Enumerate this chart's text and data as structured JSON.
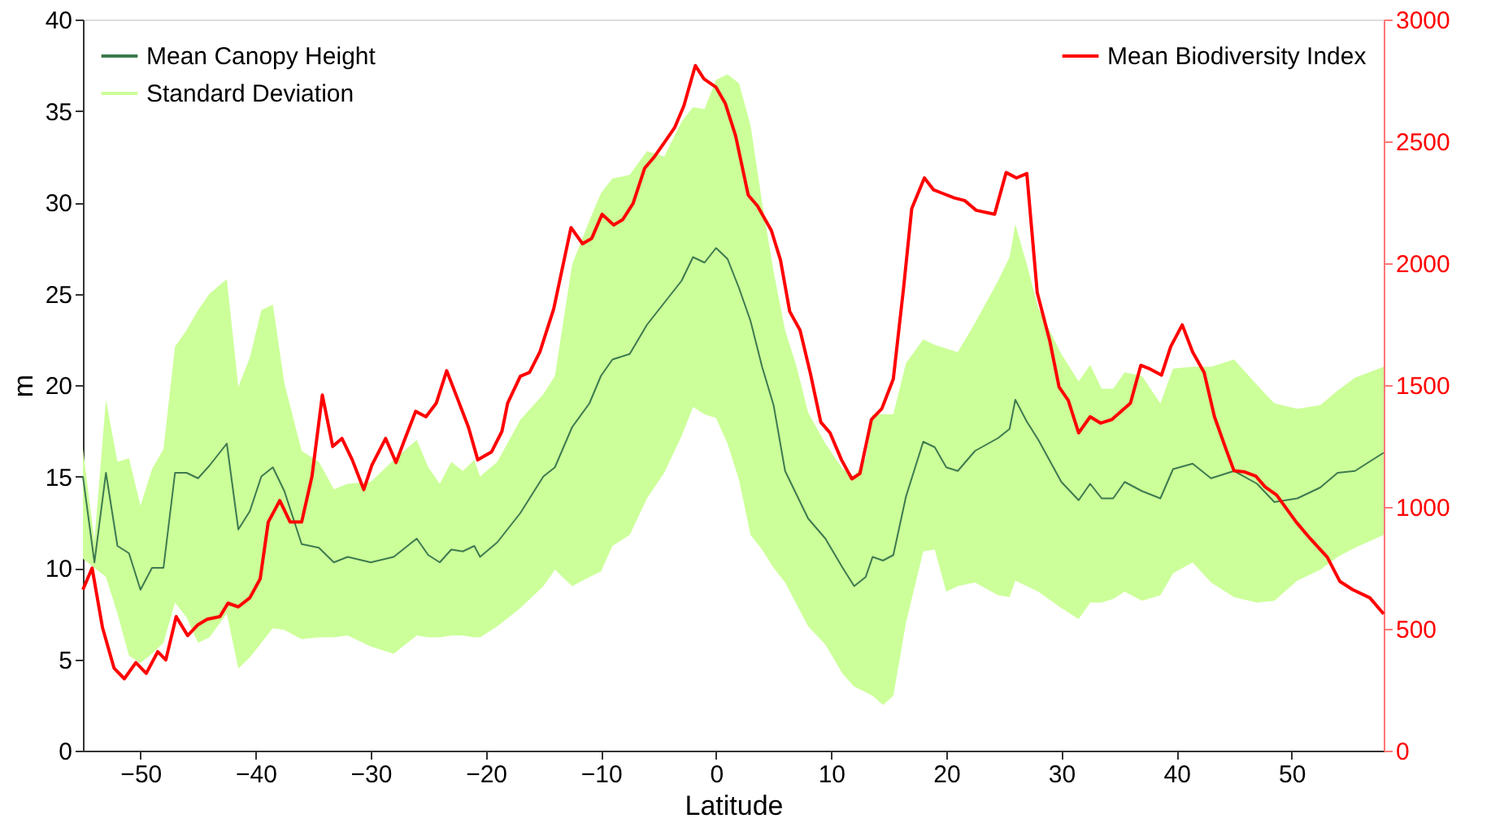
{
  "chart_data": {
    "type": "line",
    "xlabel": "Latitude",
    "ylabel": "m",
    "xlim": [
      -55,
      58
    ],
    "xticks": [
      -50,
      -40,
      -30,
      -20,
      -10,
      0,
      10,
      20,
      30,
      40,
      50
    ],
    "ylim": [
      0,
      40
    ],
    "yticks": [
      0,
      5,
      10,
      15,
      20,
      25,
      30,
      35,
      40
    ],
    "y2lim": [
      0,
      3000
    ],
    "y2ticks": [
      0,
      500,
      1000,
      1500,
      2000,
      2500,
      3000
    ],
    "grid": false,
    "legend": "top left",
    "marker": "none",
    "line_style": "solid",
    "series": [
      {
        "name": "Standard Deviation",
        "type": "area",
        "color": "#ccff99"
      },
      {
        "name": "Mean Canopy Height",
        "color": "#3d7a50",
        "x": [
          -55,
          -54,
          -53,
          -52,
          -51,
          -50,
          -49,
          -48,
          -47,
          -46,
          -45,
          -44,
          -42.5,
          -41.5,
          -40.5,
          -39.5,
          -38.5,
          -37.5,
          -36,
          -34.5,
          -33.2,
          -32,
          -30,
          -28,
          -26,
          -25,
          -24,
          -23,
          -22,
          -21,
          -20.5,
          -19,
          -17,
          -15,
          -14,
          -12.5,
          -11,
          -10,
          -9,
          -7.5,
          -6,
          -4.5,
          -3,
          -2,
          -1,
          0,
          1,
          2,
          3,
          4,
          5,
          6,
          7,
          8,
          9.5,
          11,
          12,
          13,
          13.6,
          14.5,
          15.4,
          16.5,
          18,
          19,
          20,
          21,
          22.5,
          24.5,
          25.5,
          26,
          27,
          28,
          30,
          31.5,
          32.5,
          33.5,
          34.5,
          35.5,
          37,
          38.6,
          39.7,
          41.4,
          43,
          45,
          47,
          48.5,
          50.5,
          52.5,
          54,
          55.5,
          58
        ],
        "lower": [
          10.5,
          10.0,
          9.5,
          7.5,
          5.2,
          4.8,
          5.3,
          5.9,
          8.1,
          7.3,
          5.9,
          6.2,
          7.5,
          4.5,
          5.1,
          5.9,
          6.7,
          6.6,
          6.1,
          6.2,
          6.2,
          6.3,
          5.7,
          5.3,
          6.3,
          6.2,
          6.2,
          6.3,
          6.3,
          6.2,
          6.2,
          6.8,
          7.8,
          9.0,
          9.9,
          9.0,
          9.5,
          9.8,
          11.2,
          11.8,
          13.8,
          15.2,
          17.2,
          18.8,
          18.4,
          18.2,
          16.8,
          14.8,
          11.8,
          11.0,
          10.0,
          9.2,
          8.0,
          6.8,
          5.8,
          4.2,
          3.5,
          3.2,
          3.0,
          2.5,
          3.0,
          7.0,
          10.9,
          11.0,
          8.7,
          9.0,
          9.2,
          8.5,
          8.4,
          9.3,
          9.0,
          8.7,
          7.8,
          7.2,
          8.1,
          8.1,
          8.3,
          8.7,
          8.2,
          8.5,
          9.7,
          10.3,
          9.2,
          8.4,
          8.1,
          8.2,
          9.3,
          9.9,
          10.6,
          11.1,
          11.8
        ],
        "upper": [
          16.5,
          11.5,
          19.2,
          15.8,
          16.0,
          13.4,
          15.4,
          16.5,
          22.1,
          23.0,
          24.1,
          25.0,
          25.8,
          19.9,
          21.5,
          24.1,
          24.4,
          20.1,
          16.4,
          15.8,
          14.3,
          14.6,
          14.7,
          15.9,
          17.0,
          15.5,
          14.6,
          15.8,
          15.3,
          15.9,
          15.0,
          15.8,
          18.1,
          19.5,
          20.5,
          26.6,
          29.0,
          30.5,
          31.3,
          31.5,
          32.8,
          32.5,
          34.4,
          35.2,
          35.1,
          36.7,
          37.0,
          36.5,
          34.2,
          30.0,
          26.2,
          23.0,
          21.0,
          18.5,
          16.8,
          15.4,
          15.0,
          16.0,
          18.4,
          18.4,
          18.4,
          21.2,
          22.5,
          22.2,
          22.0,
          21.8,
          23.4,
          25.7,
          27.0,
          28.8,
          26.6,
          24.2,
          21.7,
          20.2,
          21.1,
          19.8,
          19.8,
          20.7,
          20.5,
          19.0,
          20.9,
          21.0,
          21.0,
          21.4,
          20.0,
          19.0,
          18.7,
          18.9,
          19.7,
          20.4,
          21.0
        ],
        "values": [
          15.0,
          10.3,
          15.2,
          11.2,
          10.8,
          8.8,
          10.0,
          10.0,
          15.2,
          15.2,
          14.9,
          15.6,
          16.8,
          12.1,
          13.1,
          15.0,
          15.5,
          14.2,
          11.3,
          11.1,
          10.3,
          10.6,
          10.3,
          10.6,
          11.6,
          10.7,
          10.3,
          11.0,
          10.9,
          11.2,
          10.6,
          11.4,
          13.0,
          15.0,
          15.5,
          17.7,
          19.0,
          20.5,
          21.4,
          21.7,
          23.3,
          24.5,
          25.7,
          27.0,
          26.7,
          27.5,
          26.9,
          25.3,
          23.5,
          21.0,
          18.9,
          15.3,
          14.0,
          12.7,
          11.6,
          10.0,
          9.0,
          9.5,
          10.6,
          10.4,
          10.7,
          13.9,
          16.9,
          16.6,
          15.5,
          15.3,
          16.4,
          17.1,
          17.6,
          19.2,
          18.0,
          17.0,
          14.7,
          13.7,
          14.6,
          13.8,
          13.8,
          14.7,
          14.2,
          13.8,
          15.4,
          15.7,
          14.9,
          15.3,
          14.6,
          13.6,
          13.8,
          14.4,
          15.2,
          15.3,
          16.3
        ]
      },
      {
        "name": "Mean Biodiversity Index",
        "axis": "y2",
        "color": "#ff0000",
        "x": [
          -55,
          -54.2,
          -53.3,
          -52.3,
          -51.4,
          -50.4,
          -49.5,
          -48.5,
          -47.8,
          -46.9,
          -45.9,
          -45,
          -44.2,
          -43.1,
          -42.4,
          -41.5,
          -40.5,
          -39.6,
          -38.9,
          -37.9,
          -37,
          -36,
          -35.1,
          -34.2,
          -33.3,
          -32.5,
          -31.6,
          -30.6,
          -29.9,
          -28.7,
          -27.8,
          -27.1,
          -26.1,
          -25.2,
          -24.3,
          -23.4,
          -22.4,
          -21.5,
          -20.7,
          -19.5,
          -18.6,
          -18.1,
          -17,
          -16.2,
          -15.3,
          -14.1,
          -12.6,
          -11.6,
          -10.8,
          -9.9,
          -8.9,
          -8.1,
          -7.2,
          -6.2,
          -5.4,
          -4.4,
          -3.6,
          -2.8,
          -1.8,
          -1.05,
          0,
          0.8,
          1.7,
          2.8,
          3.6,
          4.8,
          5.6,
          6.4,
          7.3,
          8.2,
          9.1,
          9.9,
          10.9,
          11.8,
          12.5,
          13.5,
          14.4,
          15.4,
          16.3,
          17,
          18.1,
          18.9,
          19.5,
          20.7,
          21.6,
          22.6,
          24.2,
          25.2,
          26.1,
          27,
          27.9,
          29,
          29.8,
          30.6,
          31.5,
          32.5,
          33.4,
          34.4,
          36,
          36.9,
          37.7,
          38.7,
          39.5,
          40.5,
          41.4,
          42.4,
          43.3,
          44.3,
          45,
          45.9,
          46.9,
          47.7,
          48.7,
          50.4,
          51.6,
          53.1,
          54.2,
          55.3,
          56.8,
          58
        ],
        "values": [
          661,
          749,
          505,
          339,
          295,
          361,
          317,
          406,
          372,
          550,
          472,
          517,
          539,
          550,
          605,
          590,
          627,
          705,
          938,
          1026,
          938,
          938,
          1126,
          1459,
          1248,
          1281,
          1193,
          1071,
          1171,
          1281,
          1182,
          1270,
          1392,
          1370,
          1426,
          1559,
          1437,
          1326,
          1193,
          1226,
          1310,
          1426,
          1536,
          1552,
          1636,
          1813,
          2146,
          2080,
          2102,
          2201,
          2157,
          2179,
          2246,
          2390,
          2434,
          2501,
          2556,
          2645,
          2811,
          2756,
          2722,
          2656,
          2523,
          2279,
          2235,
          2135,
          2013,
          1802,
          1725,
          1547,
          1348,
          1304,
          1193,
          1115,
          1137,
          1359,
          1403,
          1525,
          1902,
          2224,
          2350,
          2301,
          2290,
          2268,
          2257,
          2217,
          2201,
          2372,
          2350,
          2368,
          1880,
          1680,
          1492,
          1437,
          1304,
          1370,
          1344,
          1359,
          1426,
          1581,
          1566,
          1541,
          1658,
          1747,
          1636,
          1552,
          1370,
          1237,
          1148,
          1144,
          1126,
          1082,
          1049,
          938,
          871,
          794,
          694,
          661,
          627,
          561
        ]
      }
    ]
  }
}
